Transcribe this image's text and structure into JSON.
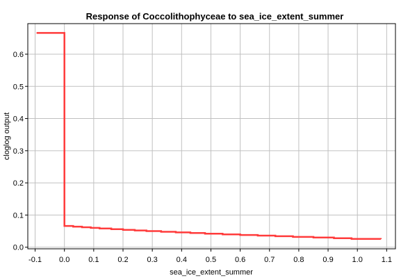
{
  "chart_data": {
    "type": "line",
    "title": "Response of Coccolithophyceae to sea_ice_extent_summer",
    "xlabel": "sea_ice_extent_summer",
    "ylabel": "cloglog output",
    "xlim": [
      -0.125,
      1.13
    ],
    "ylim": [
      -0.005,
      0.695
    ],
    "grid": true,
    "x_ticks": [
      -0.1,
      0.0,
      0.1,
      0.2,
      0.3,
      0.4,
      0.5,
      0.6,
      0.7,
      0.8,
      0.9,
      1.0,
      1.1
    ],
    "x_tick_labels": [
      "-0.1",
      "0.0",
      "0.1",
      "0.2",
      "0.3",
      "0.4",
      "0.5",
      "0.6",
      "0.7",
      "0.8",
      "0.9",
      "1.0",
      "1.1"
    ],
    "y_ticks": [
      0.0,
      0.1,
      0.2,
      0.3,
      0.4,
      0.5,
      0.6
    ],
    "y_tick_labels": [
      "0.0",
      "0.1",
      "0.2",
      "0.3",
      "0.4",
      "0.5",
      "0.6"
    ],
    "series": [
      {
        "color": "#ff3b3b",
        "step": true,
        "x": [
          -0.095,
          0.0,
          0.0,
          0.03,
          0.06,
          0.09,
          0.12,
          0.16,
          0.2,
          0.24,
          0.28,
          0.33,
          0.38,
          0.43,
          0.48,
          0.54,
          0.6,
          0.66,
          0.72,
          0.78,
          0.85,
          0.92,
          0.98,
          1.08
        ],
        "y": [
          0.666,
          0.666,
          0.066,
          0.064,
          0.062,
          0.06,
          0.058,
          0.056,
          0.054,
          0.052,
          0.05,
          0.048,
          0.046,
          0.044,
          0.042,
          0.04,
          0.038,
          0.036,
          0.034,
          0.032,
          0.03,
          0.028,
          0.026,
          0.025
        ]
      }
    ]
  }
}
